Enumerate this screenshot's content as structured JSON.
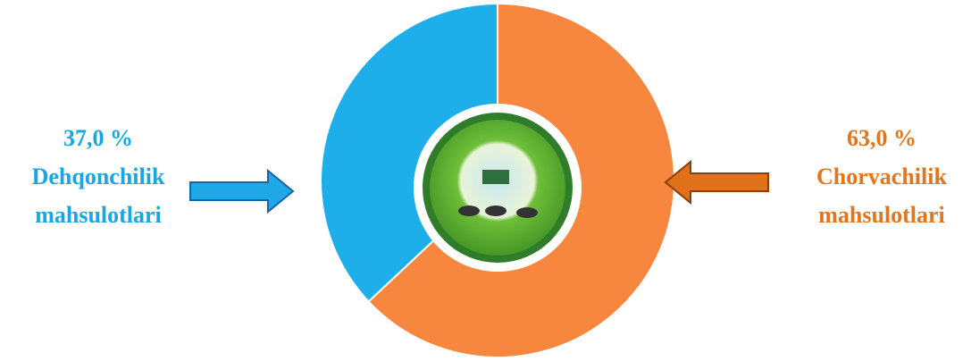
{
  "chart_data": {
    "type": "donut",
    "categories": [
      "Dehqonchilik mahsulotlari",
      "Chorvachilik mahsulotlari"
    ],
    "values": [
      37.0,
      63.0
    ],
    "value_labels": [
      "37,0 %",
      "63,0 %"
    ],
    "colors": [
      "#1eaeea",
      "#f7863f"
    ],
    "label_colors": [
      "#1aa6e0",
      "#e2761e"
    ]
  }
}
